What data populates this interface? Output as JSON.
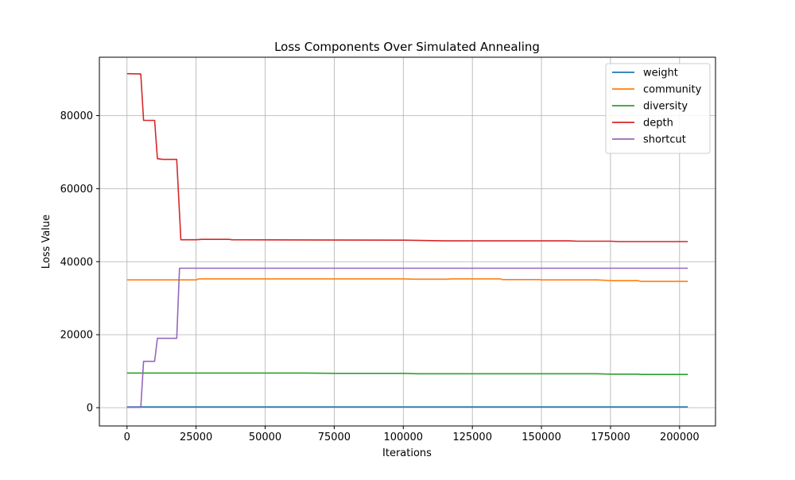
{
  "chart_data": {
    "type": "line",
    "title": "Loss Components Over Simulated Annealing",
    "xlabel": "Iterations",
    "ylabel": "Loss Value",
    "xlim": [
      -10000,
      213000
    ],
    "ylim": [
      -5000,
      96000
    ],
    "xticks": [
      0,
      25000,
      50000,
      75000,
      100000,
      125000,
      150000,
      175000,
      200000
    ],
    "yticks": [
      0,
      20000,
      40000,
      60000,
      80000
    ],
    "grid": true,
    "legend_position": "top-right",
    "series": [
      {
        "name": "weight",
        "color": "#1f77b4",
        "points": [
          [
            0,
            200
          ],
          [
            50000,
            200
          ],
          [
            100000,
            200
          ],
          [
            150000,
            200
          ],
          [
            203000,
            200
          ]
        ]
      },
      {
        "name": "community",
        "color": "#ff7f0e",
        "points": [
          [
            0,
            35000
          ],
          [
            25000,
            35000
          ],
          [
            26000,
            35300
          ],
          [
            100000,
            35300
          ],
          [
            104000,
            35200
          ],
          [
            116000,
            35200
          ],
          [
            117000,
            35300
          ],
          [
            135000,
            35300
          ],
          [
            136000,
            35100
          ],
          [
            149000,
            35100
          ],
          [
            150000,
            35000
          ],
          [
            170000,
            35000
          ],
          [
            176000,
            34800
          ],
          [
            185000,
            34800
          ],
          [
            186000,
            34600
          ],
          [
            203000,
            34600
          ]
        ]
      },
      {
        "name": "diversity",
        "color": "#2ca02c",
        "points": [
          [
            0,
            9500
          ],
          [
            30000,
            9500
          ],
          [
            65000,
            9500
          ],
          [
            75000,
            9400
          ],
          [
            100000,
            9400
          ],
          [
            105000,
            9300
          ],
          [
            150000,
            9300
          ],
          [
            170000,
            9300
          ],
          [
            175000,
            9200
          ],
          [
            185000,
            9200
          ],
          [
            186000,
            9100
          ],
          [
            203000,
            9100
          ]
        ]
      },
      {
        "name": "depth",
        "color": "#d62728",
        "points": [
          [
            0,
            91500
          ],
          [
            5000,
            91400
          ],
          [
            6000,
            78700
          ],
          [
            10000,
            78700
          ],
          [
            11000,
            68200
          ],
          [
            13000,
            68000
          ],
          [
            18000,
            68000
          ],
          [
            19500,
            46000
          ],
          [
            25000,
            46000
          ],
          [
            27000,
            46100
          ],
          [
            37000,
            46100
          ],
          [
            38000,
            46000
          ],
          [
            100000,
            45900
          ],
          [
            115000,
            45700
          ],
          [
            160000,
            45700
          ],
          [
            163000,
            45600
          ],
          [
            175000,
            45600
          ],
          [
            178000,
            45500
          ],
          [
            203000,
            45500
          ]
        ]
      },
      {
        "name": "shortcut",
        "color": "#9467bd",
        "points": [
          [
            0,
            100
          ],
          [
            5000,
            100
          ],
          [
            6000,
            12700
          ],
          [
            10000,
            12700
          ],
          [
            11000,
            19000
          ],
          [
            18000,
            19000
          ],
          [
            19000,
            38200
          ],
          [
            203000,
            38200
          ]
        ]
      }
    ]
  }
}
